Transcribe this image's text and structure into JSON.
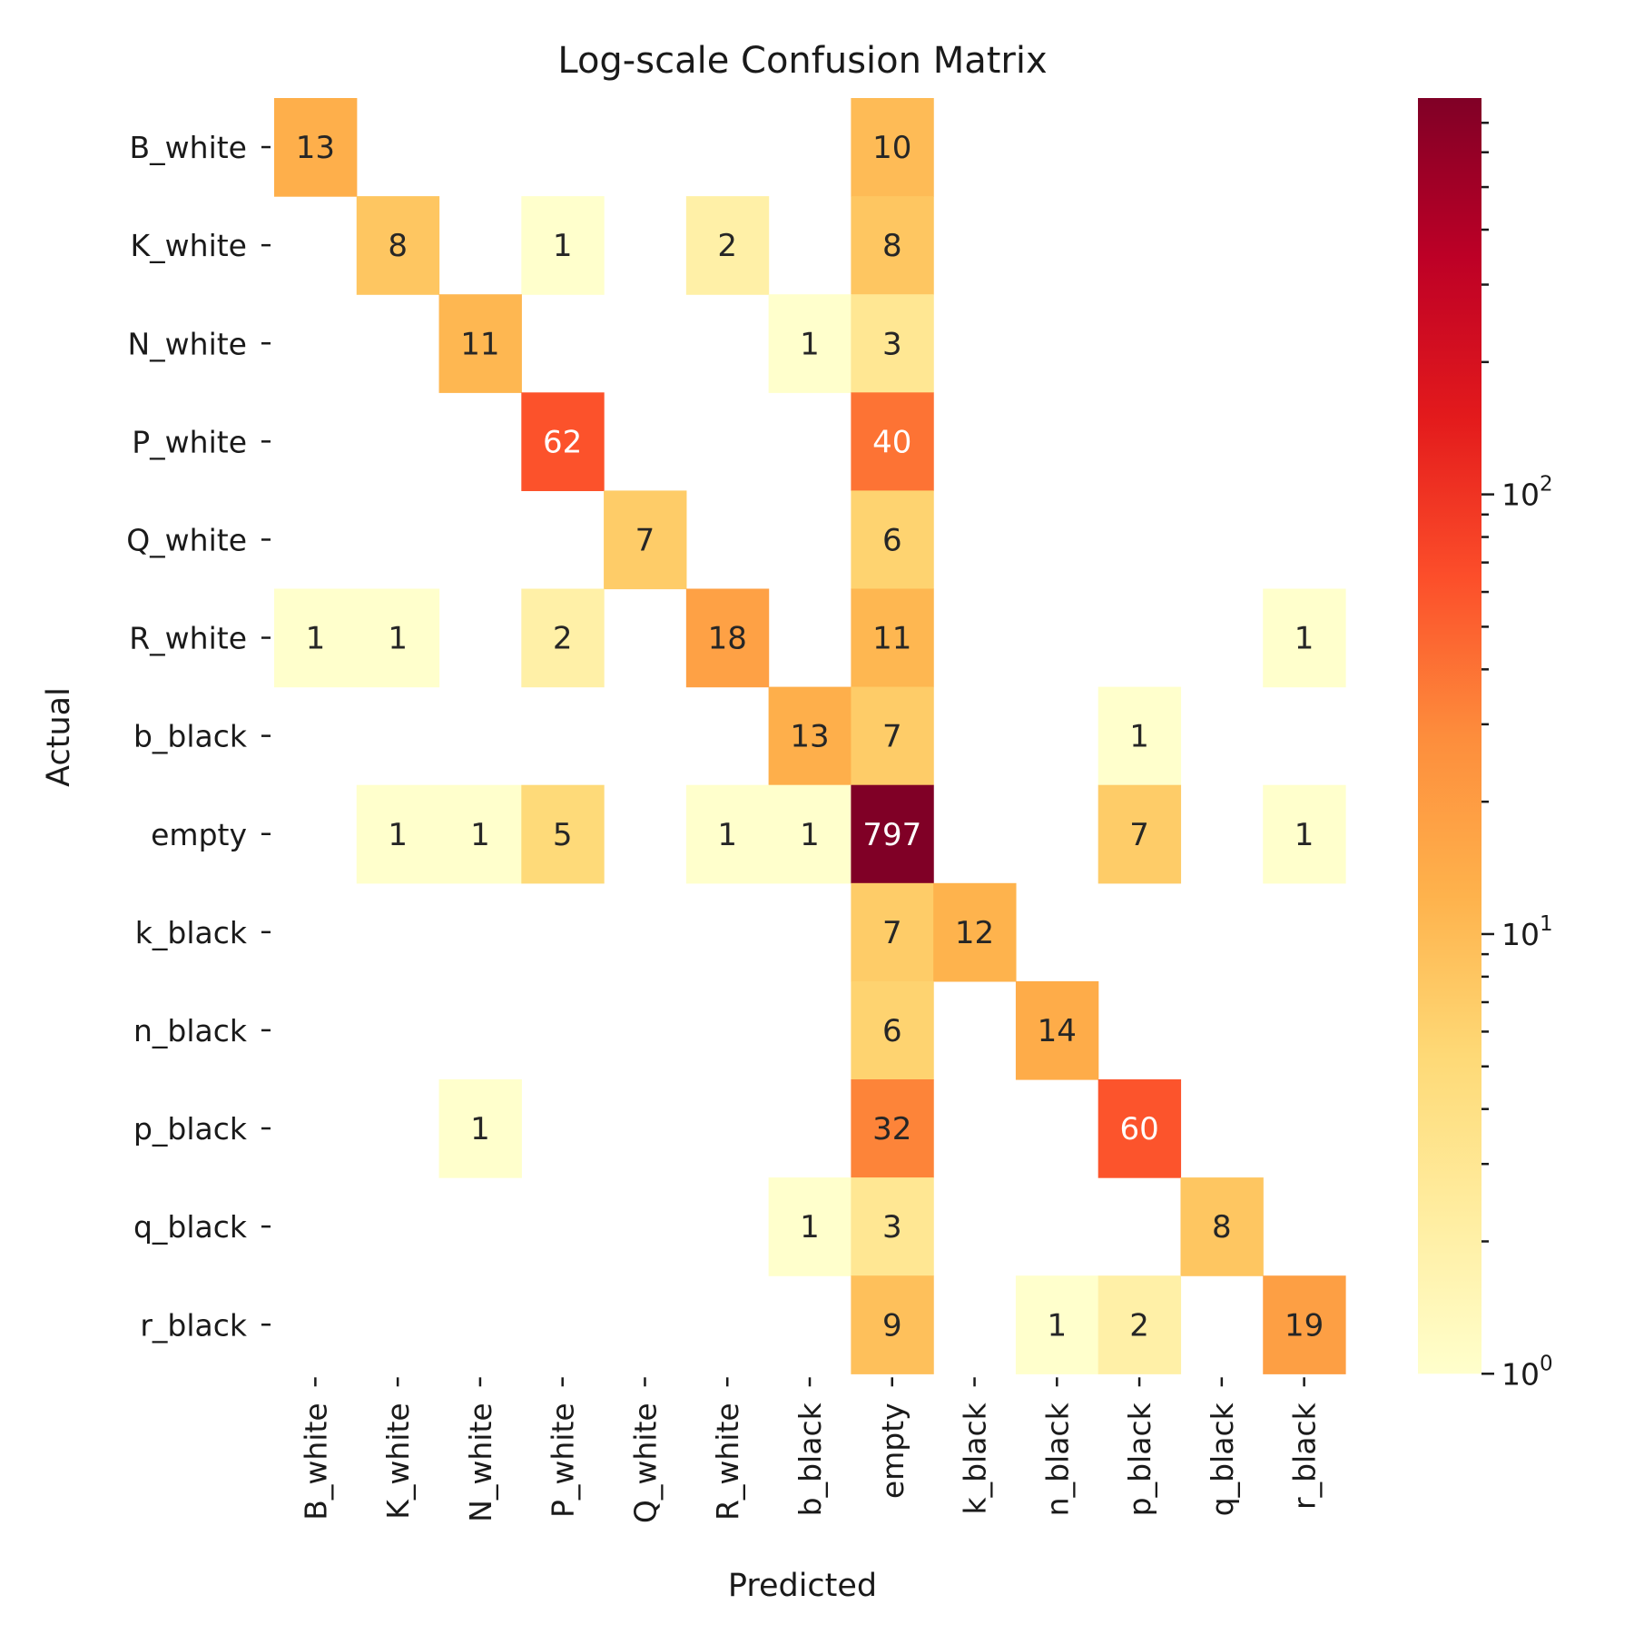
{
  "chart_data": {
    "type": "heatmap",
    "title": "Log-scale Confusion Matrix",
    "xlabel": "Predicted",
    "ylabel": "Actual",
    "x_categories": [
      "B_white",
      "K_white",
      "N_white",
      "P_white",
      "Q_white",
      "R_white",
      "b_black",
      "empty",
      "k_black",
      "n_black",
      "p_black",
      "q_black",
      "r_black"
    ],
    "y_categories": [
      "B_white",
      "K_white",
      "N_white",
      "P_white",
      "Q_white",
      "R_white",
      "b_black",
      "empty",
      "k_black",
      "n_black",
      "p_black",
      "q_black",
      "r_black"
    ],
    "matrix": [
      [
        13,
        0,
        0,
        0,
        0,
        0,
        0,
        10,
        0,
        0,
        0,
        0,
        0
      ],
      [
        0,
        8,
        0,
        1,
        0,
        2,
        0,
        8,
        0,
        0,
        0,
        0,
        0
      ],
      [
        0,
        0,
        11,
        0,
        0,
        0,
        1,
        3,
        0,
        0,
        0,
        0,
        0
      ],
      [
        0,
        0,
        0,
        62,
        0,
        0,
        0,
        40,
        0,
        0,
        0,
        0,
        0
      ],
      [
        0,
        0,
        0,
        0,
        7,
        0,
        0,
        6,
        0,
        0,
        0,
        0,
        0
      ],
      [
        1,
        1,
        0,
        2,
        0,
        18,
        0,
        11,
        0,
        0,
        0,
        0,
        1
      ],
      [
        0,
        0,
        0,
        0,
        0,
        0,
        13,
        7,
        0,
        0,
        1,
        0,
        0
      ],
      [
        0,
        1,
        1,
        5,
        0,
        1,
        1,
        797,
        0,
        0,
        7,
        0,
        1
      ],
      [
        0,
        0,
        0,
        0,
        0,
        0,
        0,
        7,
        12,
        0,
        0,
        0,
        0
      ],
      [
        0,
        0,
        0,
        0,
        0,
        0,
        0,
        6,
        0,
        14,
        0,
        0,
        0
      ],
      [
        0,
        0,
        1,
        0,
        0,
        0,
        0,
        32,
        0,
        0,
        60,
        0,
        0
      ],
      [
        0,
        0,
        0,
        0,
        0,
        0,
        1,
        3,
        0,
        0,
        0,
        8,
        0
      ],
      [
        0,
        0,
        0,
        0,
        0,
        0,
        0,
        9,
        0,
        1,
        2,
        0,
        19
      ]
    ],
    "colorscale": "log",
    "colormap": "YlOrRd",
    "colormap_stops": [
      "#ffffcc",
      "#ffeda0",
      "#fed976",
      "#feb24c",
      "#fd8d3c",
      "#fc4e2a",
      "#e31a1c",
      "#bd0026",
      "#800026"
    ],
    "vmin": 1,
    "vmax": 797,
    "colorbar_ticks": [
      {
        "value": 1,
        "base": "10",
        "exp": "0"
      },
      {
        "value": 10,
        "base": "10",
        "exp": "1"
      },
      {
        "value": 100,
        "base": "10",
        "exp": "2"
      }
    ],
    "zero_cells": "blank",
    "grid": false,
    "legend": "colorbar-right"
  }
}
